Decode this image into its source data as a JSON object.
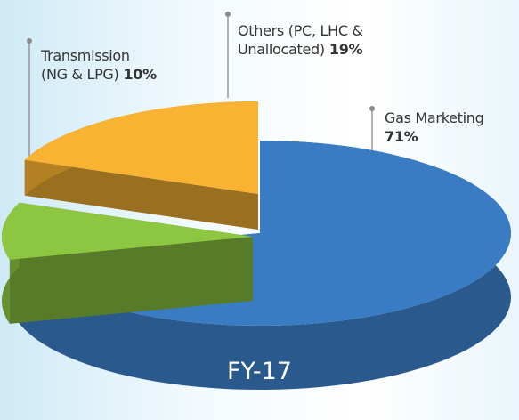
{
  "chart_data": {
    "type": "pie3d",
    "title": "FY-17",
    "categories": [
      "Gas Marketing",
      "Transmission\n(NG & LPG)",
      "Others (PC, LHC &\nUnallocated)"
    ],
    "values": [
      71,
      10,
      19
    ],
    "value_labels": [
      "71%",
      "10%",
      "19%"
    ],
    "colors": [
      "#3a7cc4",
      "#8dc641",
      "#f8b332"
    ]
  }
}
